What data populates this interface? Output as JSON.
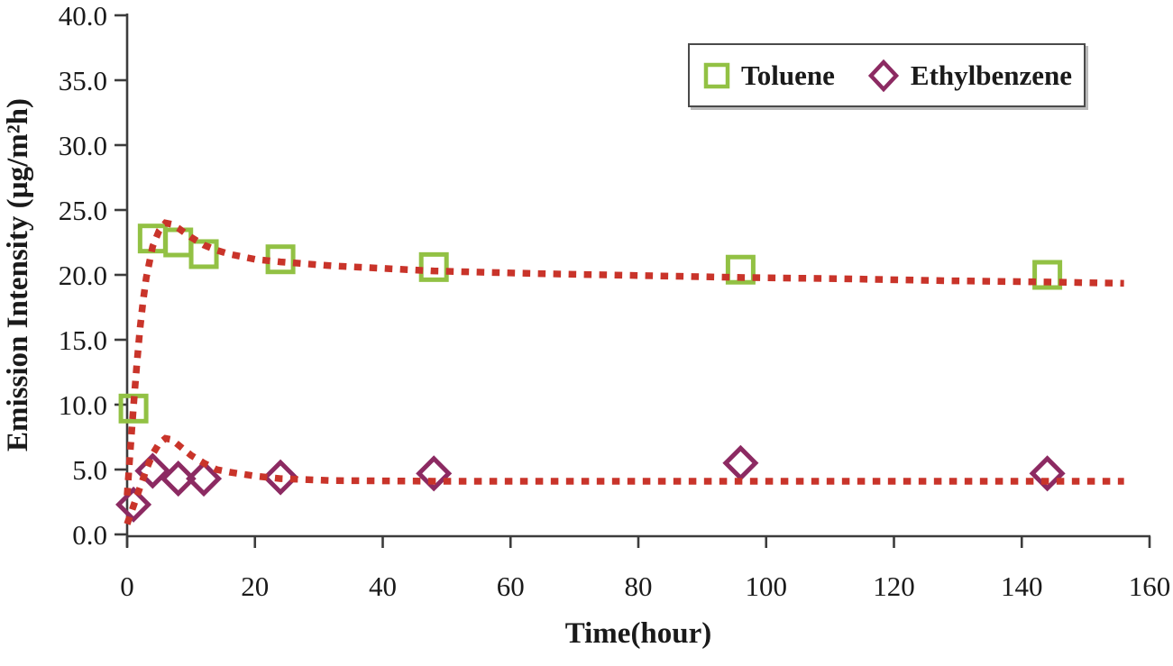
{
  "chart_data": {
    "type": "scatter",
    "title": "",
    "xlabel": "Time(hour)",
    "ylabel": "Emission Intensity (µg/m²h)",
    "xlim": [
      0,
      160
    ],
    "ylim": [
      0,
      40
    ],
    "xticks": [
      0,
      20,
      40,
      60,
      80,
      100,
      120,
      140,
      160
    ],
    "xtick_labels": [
      "0",
      "20",
      "40",
      "60",
      "80",
      "100",
      "120",
      "140",
      "160"
    ],
    "yticks": [
      0,
      5,
      10,
      15,
      20,
      25,
      30,
      35,
      40
    ],
    "ytick_labels": [
      "0.0",
      "5.0",
      "10.0",
      "15.0",
      "20.0",
      "25.0",
      "30.0",
      "35.0",
      "40.0"
    ],
    "grid": false,
    "legend_position": "top-right",
    "x": [
      1,
      4,
      8,
      12,
      24,
      48,
      96,
      144
    ],
    "series": [
      {
        "name": "Toluene",
        "marker": "square",
        "color": "#92C144",
        "values": [
          9.7,
          22.8,
          22.5,
          21.6,
          21.2,
          20.6,
          20.4,
          20.0
        ]
      },
      {
        "name": "Ethylbenzene",
        "marker": "diamond",
        "color": "#8C2A62",
        "values": [
          2.3,
          4.9,
          4.3,
          4.3,
          4.4,
          4.7,
          5.5,
          4.7
        ]
      }
    ],
    "fit_lines": {
      "color": "#C9342A",
      "style": "dotted",
      "toluene": [
        [
          0,
          3.0
        ],
        [
          0.5,
          6.5
        ],
        [
          1,
          9.9
        ],
        [
          1.5,
          13.0
        ],
        [
          2,
          15.8
        ],
        [
          2.5,
          18.0
        ],
        [
          3,
          19.8
        ],
        [
          4,
          22.2
        ],
        [
          5,
          23.4
        ],
        [
          6,
          24.0
        ],
        [
          7,
          23.9
        ],
        [
          8,
          23.6
        ],
        [
          10,
          22.9
        ],
        [
          12,
          22.3
        ],
        [
          14,
          21.9
        ],
        [
          16,
          21.6
        ],
        [
          20,
          21.2
        ],
        [
          24,
          21.0
        ],
        [
          32,
          20.7
        ],
        [
          48,
          20.3
        ],
        [
          64,
          20.1
        ],
        [
          80,
          19.95
        ],
        [
          96,
          19.8
        ],
        [
          112,
          19.7
        ],
        [
          128,
          19.55
        ],
        [
          144,
          19.45
        ],
        [
          156,
          19.35
        ]
      ],
      "ethylbenzene": [
        [
          0,
          0.8
        ],
        [
          1,
          2.2
        ],
        [
          2,
          3.6
        ],
        [
          3,
          5.0
        ],
        [
          4,
          6.2
        ],
        [
          5,
          7.0
        ],
        [
          6,
          7.4
        ],
        [
          7,
          7.3
        ],
        [
          8,
          6.9
        ],
        [
          10,
          6.1
        ],
        [
          12,
          5.5
        ],
        [
          14,
          5.0
        ],
        [
          16,
          4.8
        ],
        [
          20,
          4.5
        ],
        [
          24,
          4.3
        ],
        [
          32,
          4.15
        ],
        [
          48,
          4.1
        ],
        [
          72,
          4.1
        ],
        [
          96,
          4.1
        ],
        [
          128,
          4.1
        ],
        [
          156,
          4.1
        ]
      ]
    },
    "axis_color": "#3c3c3c",
    "text_color": "#1a1a1a"
  }
}
